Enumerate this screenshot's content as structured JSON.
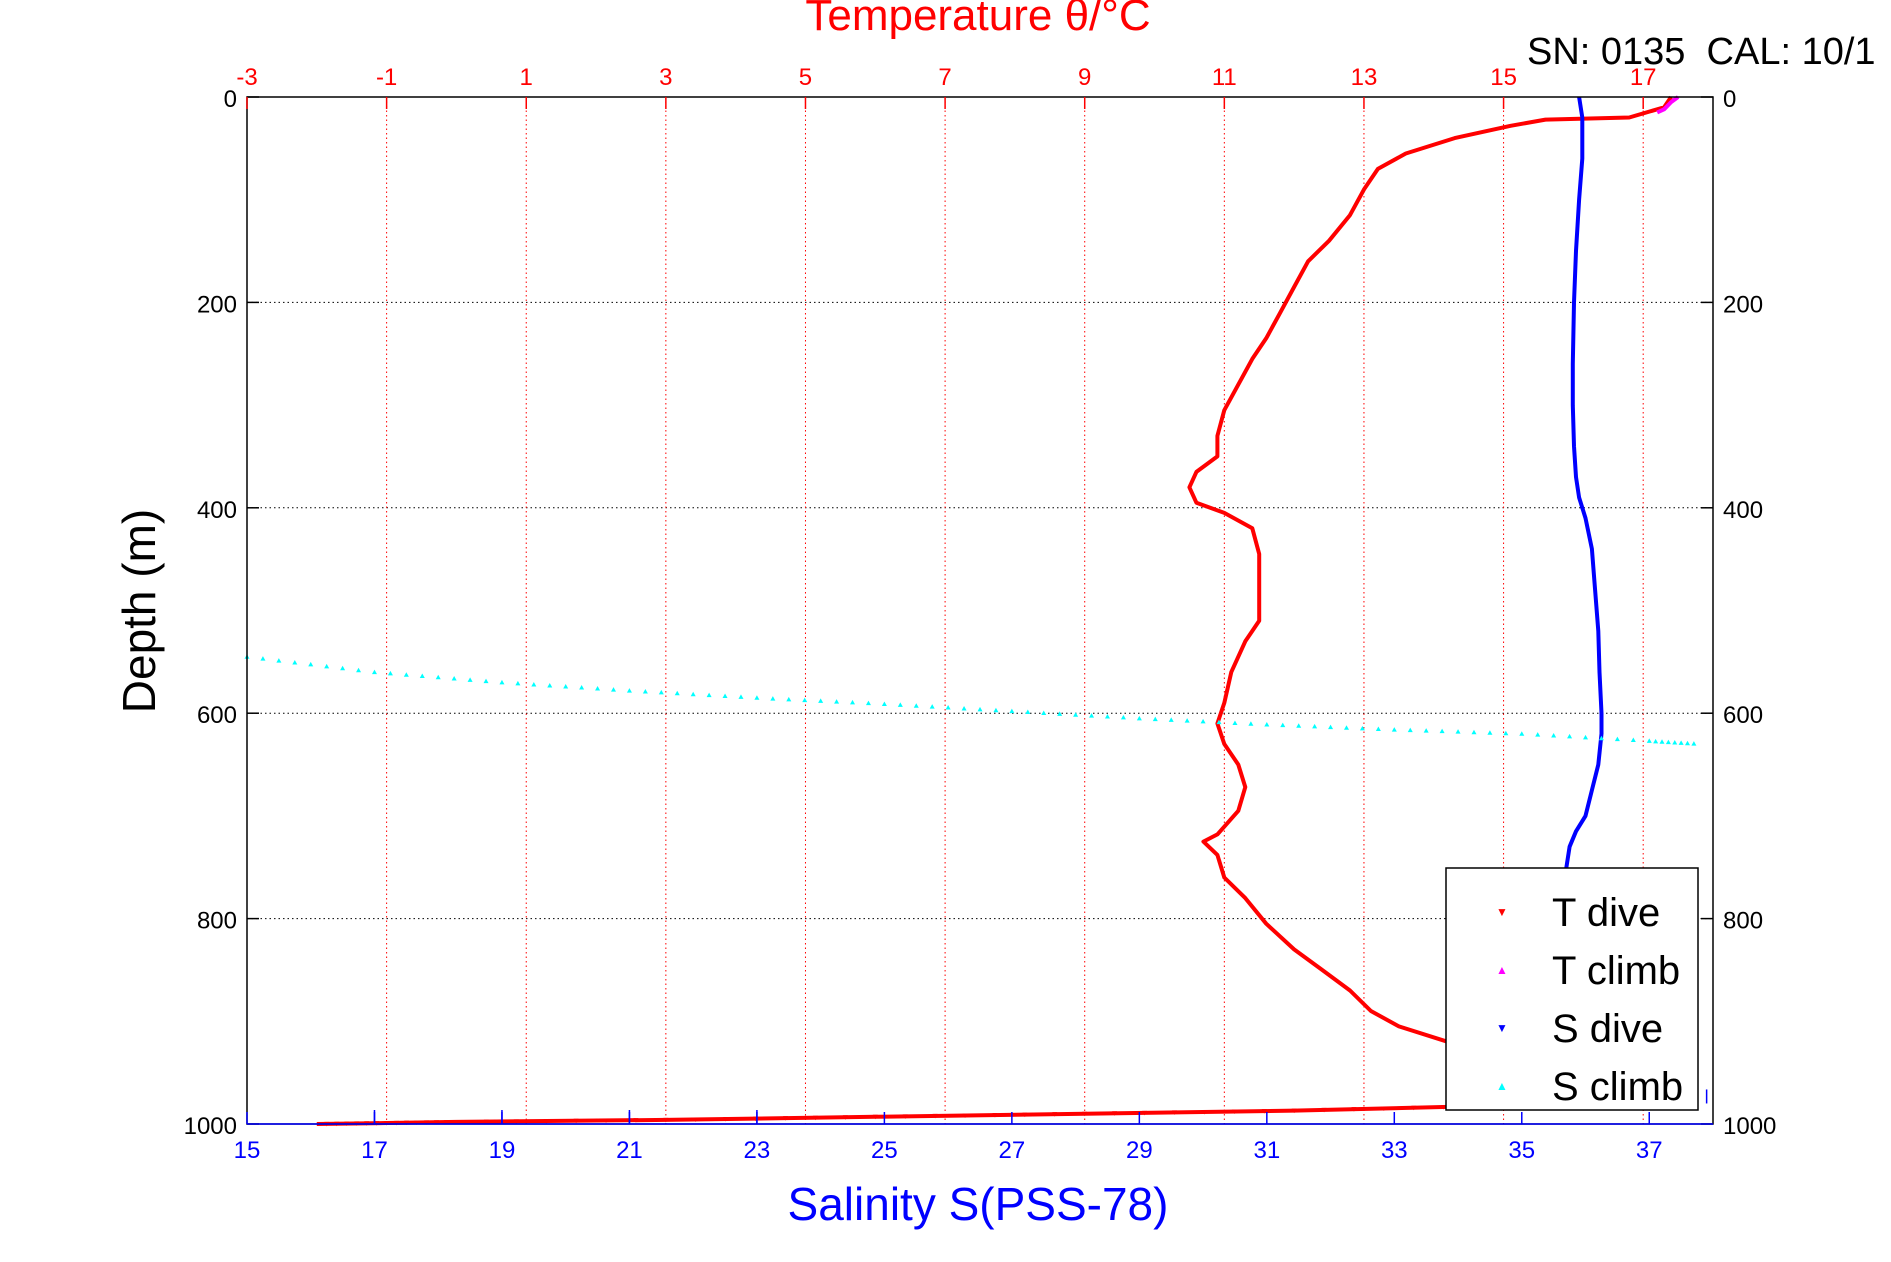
{
  "chart_data": {
    "type": "line",
    "title_top": "Temperature θ/°C",
    "header_text": "SN: 0135  CAL: 10/1",
    "ylabel": "Depth (m)",
    "xlabel_bottom": "Salinity S(PSS-78)",
    "y_ticks": [
      "0",
      "200",
      "400",
      "600",
      "800",
      "1000"
    ],
    "y_tick_values": [
      0,
      200,
      400,
      600,
      800,
      1000
    ],
    "ylim": [
      0,
      1000
    ],
    "y_reversed": true,
    "top_axis": {
      "label": "Temperature θ/°C",
      "lim": [
        -3,
        18
      ],
      "ticks": [
        "-3",
        "-1",
        "1",
        "3",
        "5",
        "7",
        "9",
        "11",
        "13",
        "15",
        "17"
      ],
      "tick_values": [
        -3,
        -1,
        1,
        3,
        5,
        7,
        9,
        11,
        13,
        15,
        17
      ],
      "color": "#ff0000"
    },
    "bottom_axis": {
      "label": "Salinity S(PSS-78)",
      "lim": [
        15,
        38
      ],
      "ticks": [
        "15",
        "17",
        "19",
        "21",
        "23",
        "25",
        "27",
        "29",
        "31",
        "33",
        "35",
        "37"
      ],
      "tick_values": [
        15,
        17,
        19,
        21,
        23,
        25,
        27,
        29,
        31,
        33,
        35,
        37
      ],
      "color": "#0000ff"
    },
    "grid": true,
    "legend_position": "bottom-right",
    "legend": [
      {
        "label": "T dive",
        "color": "#ff0000",
        "marker": "▼"
      },
      {
        "label": "T climb",
        "color": "#ff00ff",
        "marker": "▲"
      },
      {
        "label": "S dive",
        "color": "#0000ff",
        "marker": "▼"
      },
      {
        "label": "S climb",
        "color": "#00ffff",
        "marker": "▲"
      }
    ],
    "series": [
      {
        "name": "T dive",
        "axis": "top",
        "color": "#ff0000",
        "style": "dense",
        "points": [
          [
            17.4,
            0
          ],
          [
            17.3,
            10
          ],
          [
            16.8,
            20
          ],
          [
            15.6,
            22
          ],
          [
            15.1,
            28
          ],
          [
            14.3,
            40
          ],
          [
            13.6,
            55
          ],
          [
            13.2,
            70
          ],
          [
            13.0,
            90
          ],
          [
            12.8,
            115
          ],
          [
            12.5,
            140
          ],
          [
            12.2,
            160
          ],
          [
            12.0,
            185
          ],
          [
            11.8,
            210
          ],
          [
            11.6,
            235
          ],
          [
            11.4,
            255
          ],
          [
            11.2,
            280
          ],
          [
            11.0,
            305
          ],
          [
            10.9,
            330
          ],
          [
            10.9,
            350
          ],
          [
            10.6,
            365
          ],
          [
            10.5,
            380
          ],
          [
            10.6,
            395
          ],
          [
            11.0,
            405
          ],
          [
            11.4,
            420
          ],
          [
            11.5,
            445
          ],
          [
            11.5,
            480
          ],
          [
            11.5,
            510
          ],
          [
            11.3,
            530
          ],
          [
            11.1,
            560
          ],
          [
            11.0,
            590
          ],
          [
            10.9,
            610
          ],
          [
            11.0,
            630
          ],
          [
            11.2,
            650
          ],
          [
            11.3,
            672
          ],
          [
            11.2,
            695
          ],
          [
            10.9,
            718
          ],
          [
            10.7,
            725
          ],
          [
            10.9,
            738
          ],
          [
            11.0,
            760
          ],
          [
            11.3,
            780
          ],
          [
            11.6,
            805
          ],
          [
            12.0,
            830
          ],
          [
            12.4,
            850
          ],
          [
            12.8,
            870
          ],
          [
            13.1,
            890
          ],
          [
            13.5,
            905
          ],
          [
            14.2,
            920
          ],
          [
            15.1,
            940
          ],
          [
            15.8,
            965
          ],
          [
            16.2,
            975
          ],
          [
            15.0,
            982
          ],
          [
            12.0,
            987
          ],
          [
            9.0,
            990
          ],
          [
            6.0,
            993
          ],
          [
            3.0,
            996
          ],
          [
            0.0,
            998
          ],
          [
            -1.0,
            999
          ],
          [
            -2.0,
            1000
          ]
        ]
      },
      {
        "name": "T climb",
        "axis": "top",
        "color": "#ff00ff",
        "style": "dense",
        "points": [
          [
            17.5,
            0
          ],
          [
            17.4,
            5
          ],
          [
            17.3,
            12
          ],
          [
            17.2,
            15
          ]
        ]
      },
      {
        "name": "S dive",
        "axis": "bottom",
        "color": "#0000ff",
        "style": "dense",
        "points": [
          [
            35.9,
            0
          ],
          [
            35.95,
            20
          ],
          [
            35.95,
            60
          ],
          [
            35.9,
            100
          ],
          [
            35.85,
            150
          ],
          [
            35.82,
            200
          ],
          [
            35.8,
            260
          ],
          [
            35.8,
            300
          ],
          [
            35.82,
            340
          ],
          [
            35.85,
            370
          ],
          [
            35.9,
            390
          ],
          [
            36.0,
            410
          ],
          [
            36.1,
            440
          ],
          [
            36.15,
            480
          ],
          [
            36.2,
            520
          ],
          [
            36.22,
            560
          ],
          [
            36.25,
            600
          ],
          [
            36.25,
            620
          ],
          [
            36.2,
            650
          ],
          [
            36.1,
            675
          ],
          [
            36.0,
            700
          ],
          [
            35.85,
            715
          ],
          [
            35.75,
            730
          ],
          [
            35.7,
            750
          ],
          [
            35.68,
            770
          ]
        ]
      },
      {
        "name": "S climb",
        "axis": "bottom",
        "color": "#00ffff",
        "style": "sparse",
        "points": [
          [
            15.0,
            545
          ],
          [
            17.0,
            560
          ],
          [
            19.0,
            570
          ],
          [
            21.0,
            578
          ],
          [
            23.0,
            585
          ],
          [
            25.0,
            591
          ],
          [
            27.0,
            598
          ],
          [
            29.0,
            605
          ],
          [
            31.0,
            611
          ],
          [
            33.0,
            616
          ],
          [
            35.0,
            620
          ],
          [
            37.0,
            627
          ],
          [
            37.8,
            630
          ]
        ]
      },
      {
        "name": "S dive (tail)",
        "axis": "bottom",
        "color": "#0000ff",
        "style": "ticks",
        "points": [
          [
            17.0,
            1000
          ],
          [
            19.0,
            1000
          ],
          [
            21.0,
            1000
          ],
          [
            23.0,
            1000
          ],
          [
            37.9,
            980
          ]
        ]
      }
    ]
  }
}
